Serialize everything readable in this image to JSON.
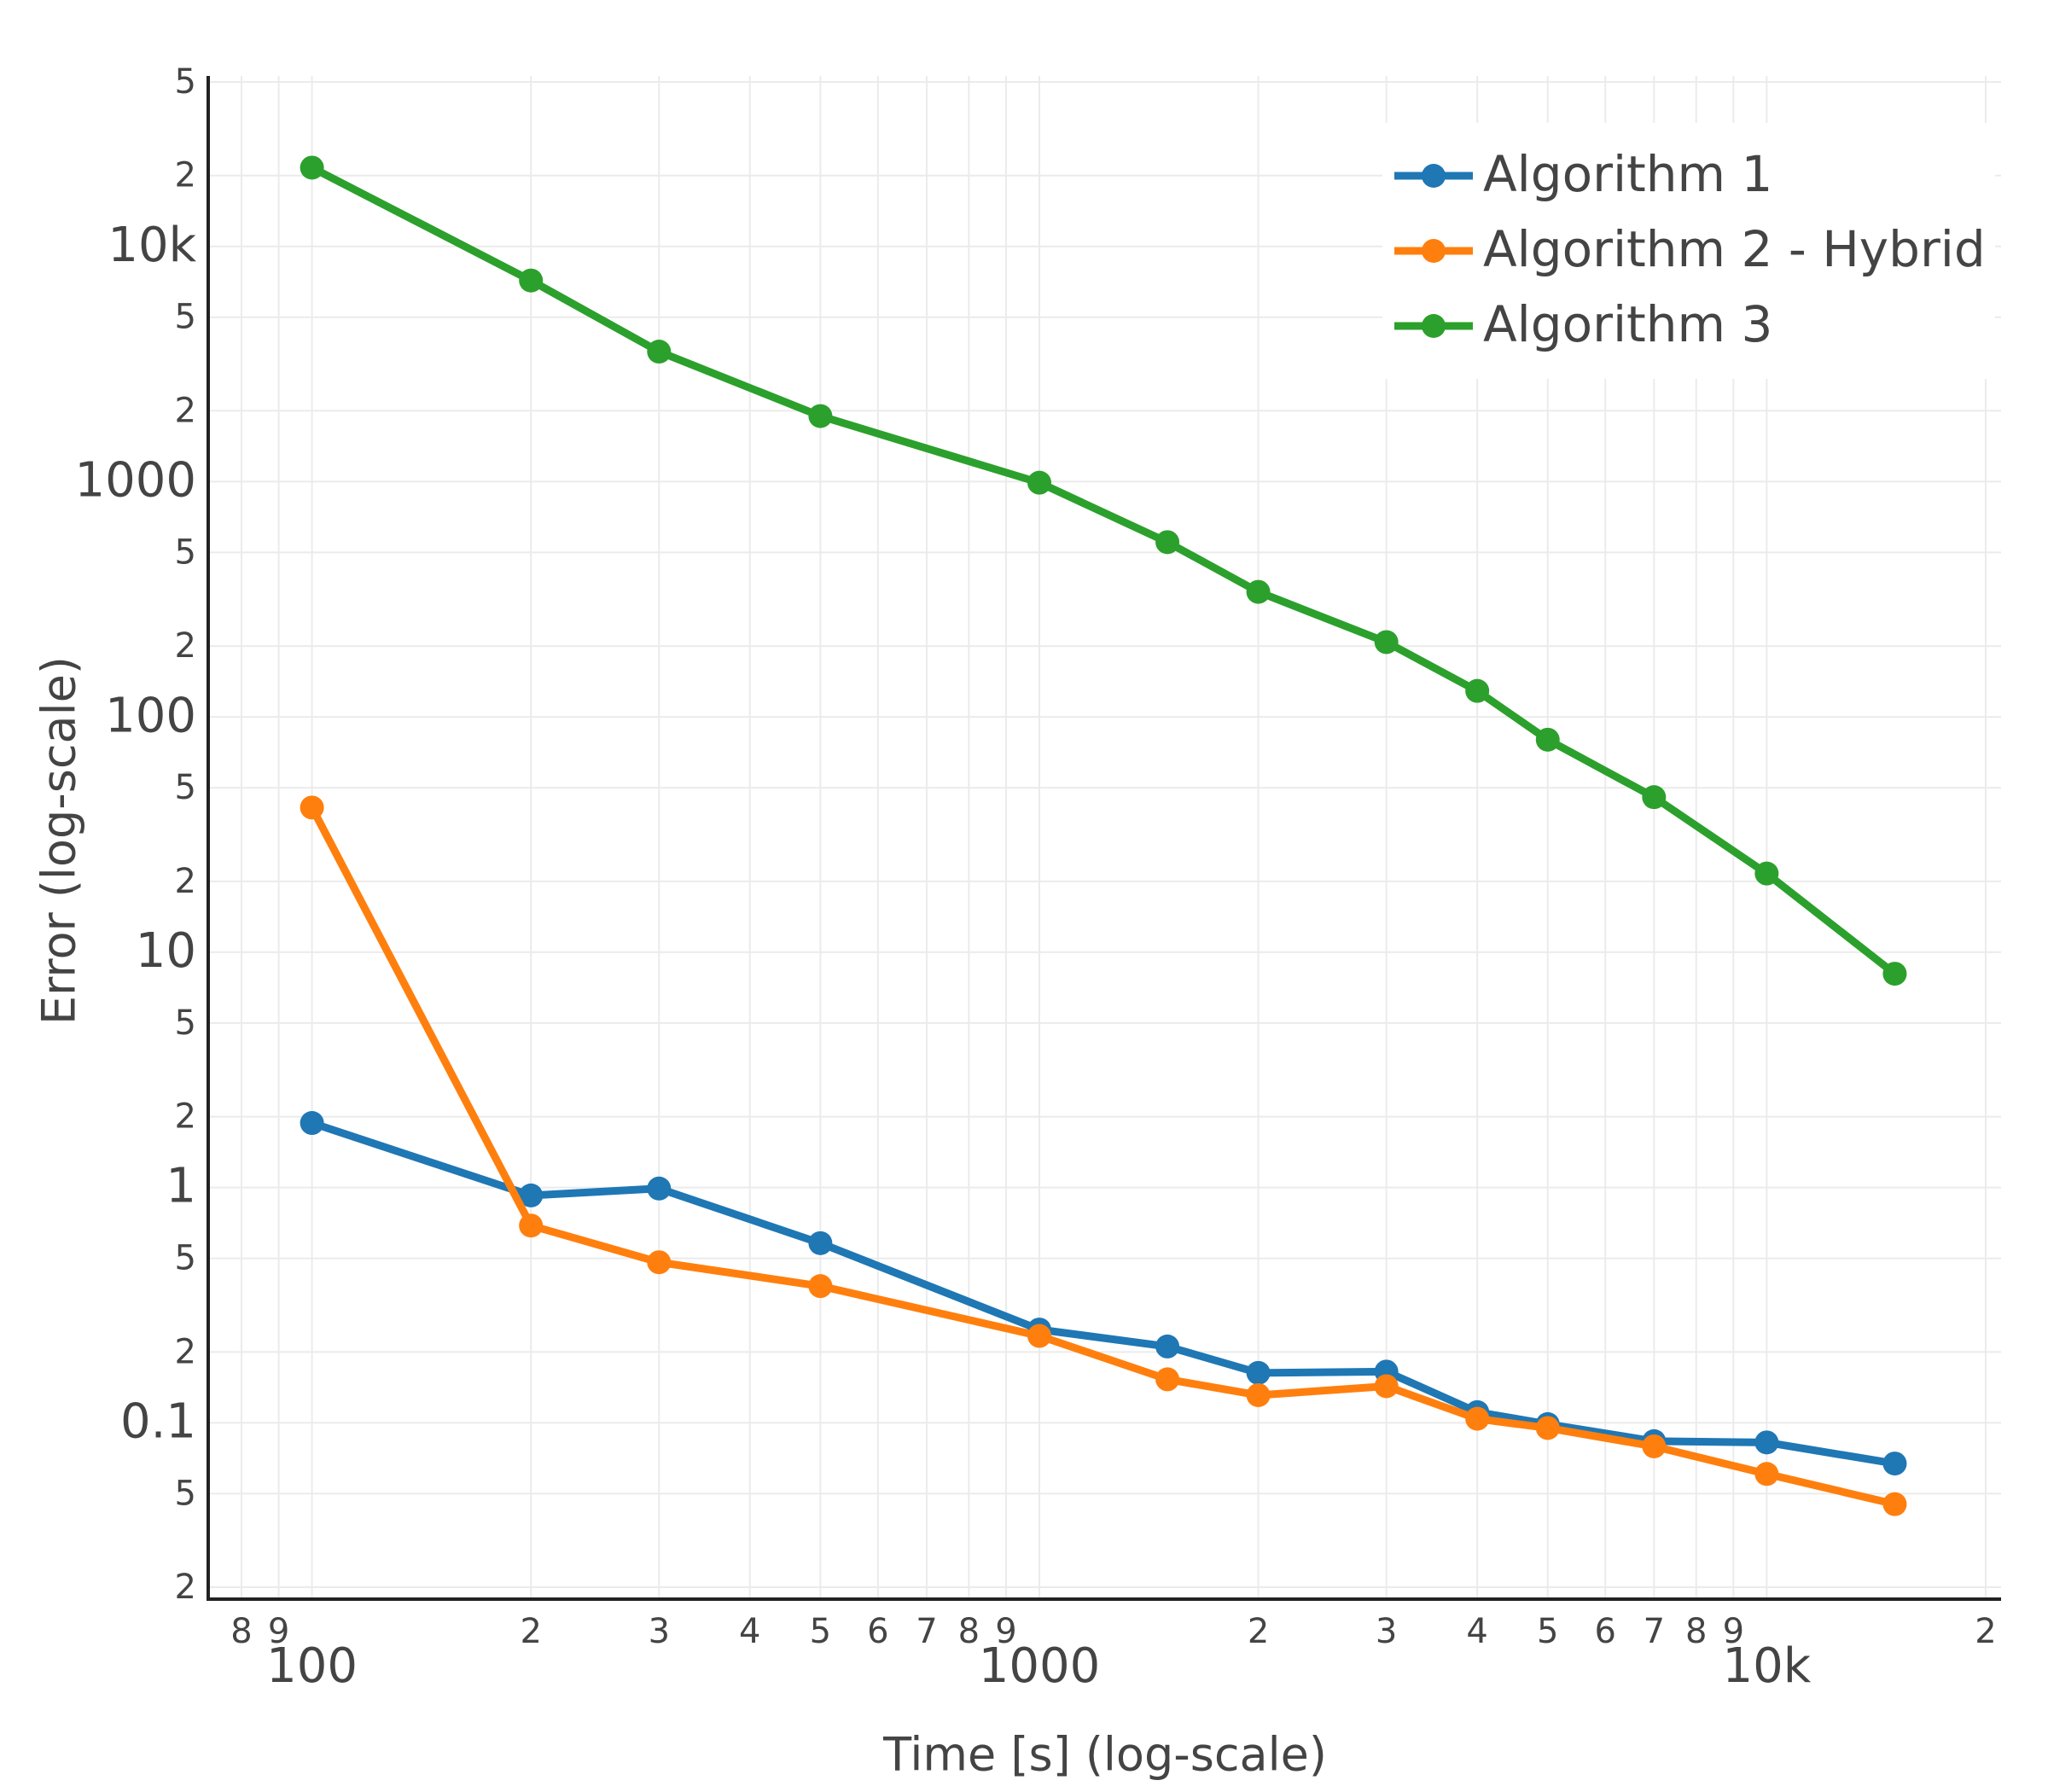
{
  "chart_data": {
    "type": "line",
    "xlabel": "Time [s] (log-scale)",
    "ylabel": "Error (log-scale)",
    "x": [
      100,
      200,
      300,
      500,
      1000,
      1500,
      2000,
      3000,
      4000,
      5000,
      7000,
      10000,
      15000
    ],
    "series": [
      {
        "name": "Algorithm 1",
        "color": "#1f77b4",
        "values": [
          1.88,
          0.925,
          0.99,
          0.58,
          0.249,
          0.211,
          0.163,
          0.165,
          0.111,
          0.0987,
          0.0835,
          0.0825,
          0.0671
        ]
      },
      {
        "name": "Algorithm 2 - Hybrid",
        "color": "#ff7f0e",
        "values": [
          41.2,
          0.689,
          0.481,
          0.381,
          0.234,
          0.153,
          0.131,
          0.143,
          0.104,
          0.095,
          0.0794,
          0.0606,
          0.0451
        ]
      },
      {
        "name": "Algorithm 3",
        "color": "#2ca02c",
        "values": [
          21600,
          7160,
          3570,
          1900,
          990,
          553,
          340,
          208,
          129,
          80,
          45.6,
          21.6,
          8.1
        ]
      }
    ],
    "xscale": "log",
    "yscale": "log",
    "xlim": [
      72,
      21000
    ],
    "ylim": [
      0.0178,
      53000
    ],
    "xticks": [
      {
        "value": 80,
        "label": "8"
      },
      {
        "value": 90,
        "label": "9"
      },
      100,
      {
        "value": 200,
        "label": "2"
      },
      {
        "value": 300,
        "label": "3"
      },
      {
        "value": 400,
        "label": "4"
      },
      {
        "value": 500,
        "label": "5"
      },
      {
        "value": 600,
        "label": "6"
      },
      {
        "value": 700,
        "label": "7"
      },
      {
        "value": 800,
        "label": "8"
      },
      {
        "value": 900,
        "label": "9"
      },
      1000,
      {
        "value": 2000,
        "label": "2"
      },
      {
        "value": 3000,
        "label": "3"
      },
      {
        "value": 4000,
        "label": "4"
      },
      {
        "value": 5000,
        "label": "5"
      },
      {
        "value": 6000,
        "label": "6"
      },
      {
        "value": 7000,
        "label": "7"
      },
      {
        "value": 8000,
        "label": "8"
      },
      {
        "value": 9000,
        "label": "9"
      },
      {
        "value": 10000,
        "label": "10k"
      },
      {
        "value": 20000,
        "label": "2"
      }
    ],
    "yticks": [
      {
        "value": 0.02,
        "label": "2"
      },
      {
        "value": 0.05,
        "label": "5"
      },
      0.1,
      {
        "value": 0.2,
        "label": "2"
      },
      {
        "value": 0.5,
        "label": "5"
      },
      1,
      {
        "value": 2,
        "label": "2"
      },
      {
        "value": 5,
        "label": "5"
      },
      10,
      {
        "value": 20,
        "label": "2"
      },
      {
        "value": 50,
        "label": "5"
      },
      100,
      {
        "value": 200,
        "label": "2"
      },
      {
        "value": 500,
        "label": "5"
      },
      1000,
      {
        "value": 2000,
        "label": "2"
      },
      {
        "value": 5000,
        "label": "5"
      },
      {
        "value": 10000,
        "label": "10k"
      },
      {
        "value": 20000,
        "label": "2"
      },
      {
        "value": 50000,
        "label": "5"
      }
    ],
    "grid": true,
    "legend": "top-right"
  }
}
